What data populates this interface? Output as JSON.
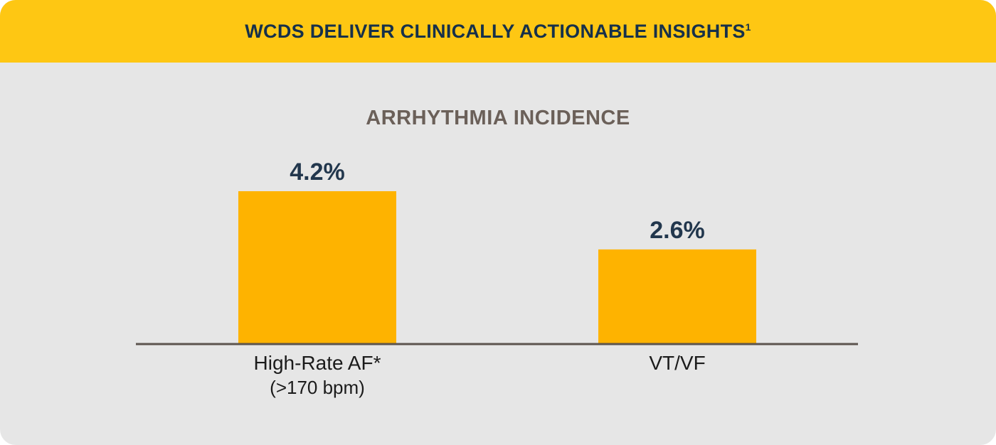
{
  "header": {
    "title": "WCDS DELIVER CLINICALLY ACTIONABLE INSIGHTS",
    "footnote_marker": "1"
  },
  "colors": {
    "header_bg": "#fec713",
    "bar": "#feb300",
    "card_bg": "#e6e6e6",
    "title_text": "#16304a",
    "value_text": "#22374d",
    "chart_title_text": "#6b6059",
    "axis": "#5c544e"
  },
  "chart_data": {
    "type": "bar",
    "title": "ARRHYTHMIA INCIDENCE",
    "categories": [
      "High-Rate AF*",
      "VT/VF"
    ],
    "category_sublabels": [
      "(>170 bpm)",
      ""
    ],
    "values": [
      4.2,
      2.6
    ],
    "value_labels": [
      "4.2%",
      "2.6%"
    ],
    "unit": "%",
    "ylim": [
      0,
      5
    ],
    "grid": false,
    "legend": "none"
  }
}
